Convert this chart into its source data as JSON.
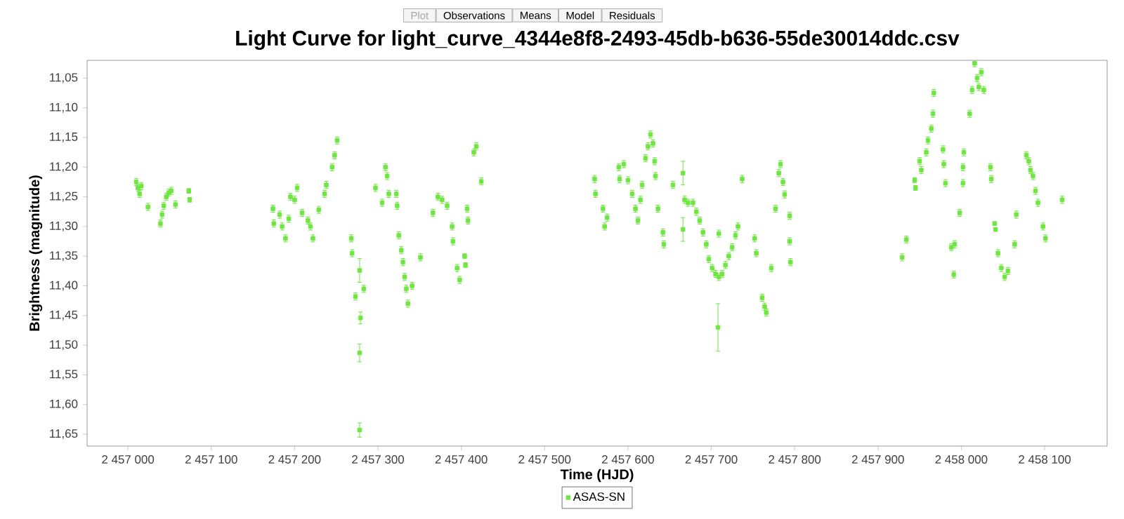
{
  "chart_data": {
    "type": "scatter",
    "title": "Light Curve for light_curve_4344e8f8-2493-45db-b636-55de30014ddc.csv",
    "xlabel": "Time (HJD)",
    "ylabel": "Brightness (magnitude)",
    "annotations": [
      "Plot",
      "Observations",
      "Means",
      "Model",
      "Residuals"
    ],
    "xlim": [
      2456951,
      2458175
    ],
    "ylim": [
      11.67,
      11.02
    ],
    "xticks": [
      {
        "value": 2457000,
        "label": "2 457 000"
      },
      {
        "value": 2457100,
        "label": "2 457 100"
      },
      {
        "value": 2457200,
        "label": "2 457 200"
      },
      {
        "value": 2457300,
        "label": "2 457 300"
      },
      {
        "value": 2457400,
        "label": "2 457 400"
      },
      {
        "value": 2457500,
        "label": "2 457 500"
      },
      {
        "value": 2457600,
        "label": "2 457 600"
      },
      {
        "value": 2457700,
        "label": "2 457 700"
      },
      {
        "value": 2457800,
        "label": "2 457 800"
      },
      {
        "value": 2457900,
        "label": "2 457 900"
      },
      {
        "value": 2458000,
        "label": "2 458 000"
      },
      {
        "value": 2458100,
        "label": "2 458 100"
      }
    ],
    "yticks": [
      {
        "value": 11.05,
        "label": "11,05"
      },
      {
        "value": 11.1,
        "label": "11,10"
      },
      {
        "value": 11.15,
        "label": "11,15"
      },
      {
        "value": 11.2,
        "label": "11,20"
      },
      {
        "value": 11.25,
        "label": "11,25"
      },
      {
        "value": 11.3,
        "label": "11,30"
      },
      {
        "value": 11.35,
        "label": "11,35"
      },
      {
        "value": 11.4,
        "label": "11,40"
      },
      {
        "value": 11.45,
        "label": "11,45"
      },
      {
        "value": 11.5,
        "label": "11,50"
      },
      {
        "value": 11.55,
        "label": "11,55"
      },
      {
        "value": 11.6,
        "label": "11,60"
      },
      {
        "value": 11.65,
        "label": "11,65"
      }
    ],
    "legend": "bottom",
    "marker": "square",
    "series": [
      {
        "name": "ASAS-SN",
        "color": "#6ee640",
        "x": [
          2457010,
          2457012,
          2457014,
          2457016,
          2457024,
          2457039,
          2457041,
          2457043,
          2457046,
          2457049,
          2457052,
          2457057,
          2457073,
          2457074,
          2457174,
          2457175,
          2457182,
          2457185,
          2457189,
          2457193,
          2457195,
          2457200,
          2457203,
          2457209,
          2457216,
          2457219,
          2457222,
          2457229,
          2457236,
          2457238,
          2457245,
          2457248,
          2457251,
          2457268,
          2457269,
          2457273,
          2457278,
          2457279,
          2457278,
          2457278,
          2457283,
          2457297,
          2457305,
          2457309,
          2457311,
          2457313,
          2457322,
          2457323,
          2457325,
          2457328,
          2457330,
          2457332,
          2457334,
          2457336,
          2457341,
          2457351,
          2457366,
          2457372,
          2457377,
          2457383,
          2457389,
          2457390,
          2457395,
          2457398,
          2457404,
          2457405,
          2457407,
          2457408,
          2457415,
          2457418,
          2457424,
          2457560,
          2457561,
          2457570,
          2457572,
          2457575,
          2457589,
          2457590,
          2457595,
          2457600,
          2457605,
          2457609,
          2457612,
          2457615,
          2457617,
          2457621,
          2457624,
          2457627,
          2457630,
          2457632,
          2457633,
          2457636,
          2457642,
          2457643,
          2457654,
          2457666,
          2457666,
          2457668,
          2457672,
          2457678,
          2457682,
          2457686,
          2457690,
          2457694,
          2457697,
          2457701,
          2457705,
          2457709,
          2457708,
          2457709,
          2457713,
          2457717,
          2457721,
          2457725,
          2457729,
          2457732,
          2457737,
          2457752,
          2457754,
          2457761,
          2457764,
          2457766,
          2457772,
          2457777,
          2457781,
          2457783,
          2457786,
          2457788,
          2457794,
          2457794,
          2457795,
          2457929,
          2457934,
          2457944,
          2457945,
          2457950,
          2457952,
          2457958,
          2457960,
          2457964,
          2457966,
          2457967,
          2457978,
          2457979,
          2457981,
          2457988,
          2457992,
          2457991,
          2457998,
          2458002,
          2458002,
          2458003,
          2458010,
          2458013,
          2458016,
          2458019,
          2458021,
          2458024,
          2458027,
          2458035,
          2458036,
          2458040,
          2458041,
          2458044,
          2458048,
          2458052,
          2458056,
          2458064,
          2458066,
          2458078,
          2458081,
          2458083,
          2458086,
          2458089,
          2458092,
          2458098,
          2458101,
          2458121
        ],
        "values": [
          11.225,
          11.235,
          11.245,
          11.232,
          11.267,
          11.295,
          11.28,
          11.265,
          11.25,
          11.243,
          11.24,
          11.263,
          11.24,
          11.255,
          11.27,
          11.295,
          11.28,
          11.3,
          11.32,
          11.287,
          11.25,
          11.255,
          11.235,
          11.277,
          11.29,
          11.3,
          11.32,
          11.272,
          11.245,
          11.23,
          11.2,
          11.18,
          11.155,
          11.32,
          11.345,
          11.418,
          11.374,
          11.454,
          11.513,
          11.643,
          11.405,
          11.235,
          11.26,
          11.2,
          11.215,
          11.245,
          11.245,
          11.265,
          11.315,
          11.34,
          11.36,
          11.385,
          11.405,
          11.43,
          11.4,
          11.352,
          11.277,
          11.25,
          11.255,
          11.265,
          11.3,
          11.325,
          11.37,
          11.39,
          11.35,
          11.365,
          11.27,
          11.29,
          11.175,
          11.165,
          11.224,
          11.22,
          11.245,
          11.27,
          11.3,
          11.285,
          11.2,
          11.22,
          11.195,
          11.222,
          11.245,
          11.27,
          11.29,
          11.255,
          11.23,
          11.185,
          11.165,
          11.145,
          11.16,
          11.19,
          11.215,
          11.27,
          11.31,
          11.33,
          11.23,
          11.21,
          11.305,
          11.255,
          11.26,
          11.26,
          11.275,
          11.29,
          11.31,
          11.33,
          11.355,
          11.37,
          11.38,
          11.385,
          11.47,
          11.312,
          11.38,
          11.365,
          11.35,
          11.335,
          11.315,
          11.3,
          11.22,
          11.32,
          11.345,
          11.42,
          11.435,
          11.445,
          11.37,
          11.27,
          11.21,
          11.195,
          11.225,
          11.246,
          11.282,
          11.325,
          11.36,
          11.352,
          11.322,
          11.222,
          11.235,
          11.19,
          11.205,
          11.175,
          11.155,
          11.135,
          11.11,
          11.075,
          11.17,
          11.195,
          11.227,
          11.335,
          11.33,
          11.381,
          11.277,
          11.2,
          11.227,
          11.175,
          11.11,
          11.07,
          11.025,
          11.05,
          11.065,
          11.04,
          11.07,
          11.2,
          11.22,
          11.295,
          11.305,
          11.345,
          11.37,
          11.385,
          11.375,
          11.33,
          11.28,
          11.18,
          11.19,
          11.205,
          11.215,
          11.24,
          11.26,
          11.3,
          11.32,
          11.255
        ],
        "errors": [
          0.006,
          0.006,
          0.006,
          0.006,
          0.006,
          0.006,
          0.006,
          0.006,
          0.006,
          0.006,
          0.006,
          0.006,
          0.004,
          0.004,
          0.006,
          0.006,
          0.006,
          0.006,
          0.006,
          0.006,
          0.006,
          0.006,
          0.006,
          0.006,
          0.006,
          0.006,
          0.006,
          0.006,
          0.006,
          0.006,
          0.006,
          0.006,
          0.006,
          0.006,
          0.006,
          0.006,
          0.02,
          0.01,
          0.015,
          0.012,
          0.006,
          0.006,
          0.006,
          0.006,
          0.006,
          0.006,
          0.006,
          0.006,
          0.006,
          0.006,
          0.006,
          0.006,
          0.006,
          0.006,
          0.006,
          0.006,
          0.006,
          0.006,
          0.006,
          0.006,
          0.006,
          0.006,
          0.006,
          0.006,
          0.004,
          0.004,
          0.006,
          0.006,
          0.006,
          0.006,
          0.006,
          0.006,
          0.006,
          0.006,
          0.006,
          0.006,
          0.006,
          0.006,
          0.006,
          0.006,
          0.006,
          0.006,
          0.006,
          0.006,
          0.006,
          0.006,
          0.006,
          0.006,
          0.006,
          0.006,
          0.006,
          0.006,
          0.006,
          0.006,
          0.006,
          0.02,
          0.02,
          0.006,
          0.006,
          0.006,
          0.006,
          0.006,
          0.006,
          0.006,
          0.006,
          0.006,
          0.006,
          0.006,
          0.04,
          0.006,
          0.006,
          0.006,
          0.006,
          0.006,
          0.006,
          0.006,
          0.006,
          0.006,
          0.006,
          0.006,
          0.006,
          0.006,
          0.006,
          0.006,
          0.006,
          0.006,
          0.006,
          0.006,
          0.006,
          0.006,
          0.006,
          0.006,
          0.006,
          0.004,
          0.004,
          0.006,
          0.006,
          0.006,
          0.006,
          0.006,
          0.006,
          0.006,
          0.006,
          0.006,
          0.006,
          0.006,
          0.006,
          0.006,
          0.006,
          0.006,
          0.006,
          0.006,
          0.006,
          0.006,
          0.006,
          0.006,
          0.006,
          0.006,
          0.006,
          0.006,
          0.006,
          0.003,
          0.003,
          0.006,
          0.006,
          0.006,
          0.006,
          0.006,
          0.006,
          0.006,
          0.006,
          0.006,
          0.006,
          0.006,
          0.006,
          0.006,
          0.006,
          0.006
        ]
      }
    ]
  }
}
